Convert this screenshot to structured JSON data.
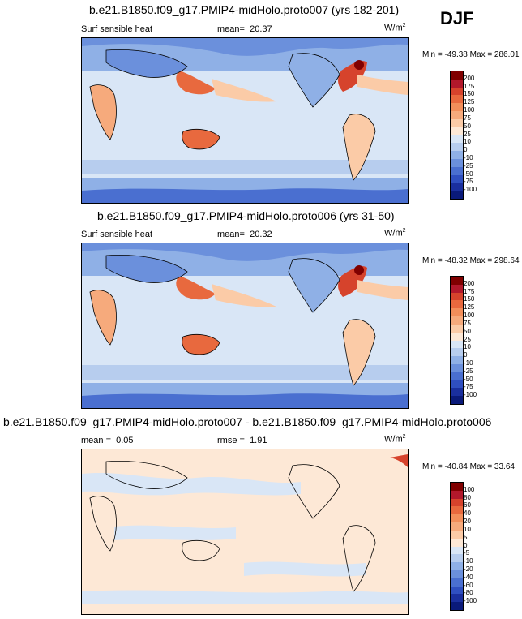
{
  "season": "DJF",
  "colors": {
    "ocean_base": "#d9e6f6",
    "accent_red": "#b2182b",
    "accent_blue": "#2b3fa8"
  },
  "chart_data": [
    {
      "type": "heatmap",
      "title": "b.e21.B1850.f09_g17.PMIP4-midHolo.proto007 (yrs 182-201)",
      "variable": "Surf sensible heat",
      "mean_label": "mean=",
      "mean": "20.37",
      "units": "W/m",
      "units_sup": "2",
      "min_max": "Min = -49.38 Max = 286.01",
      "colorbar_levels": [
        "200",
        "175",
        "150",
        "125",
        "100",
        "75",
        "50",
        "25",
        "10",
        "0",
        "-10",
        "-25",
        "-50",
        "-75",
        "-100"
      ],
      "colorbar_colors": [
        "#800000",
        "#b2182b",
        "#d6432c",
        "#e8693e",
        "#f28e5a",
        "#f6aa7c",
        "#fbcba7",
        "#fde8d6",
        "#d9e6f6",
        "#b7cdee",
        "#8fb0e6",
        "#6b90dc",
        "#4a6fd0",
        "#2f4fc0",
        "#1a2f9e",
        "#0a1a7a"
      ]
    },
    {
      "type": "heatmap",
      "title": "b.e21.B1850.f09_g17.PMIP4-midHolo.proto006 (yrs 31-50)",
      "variable": "Surf sensible heat",
      "mean_label": "mean=",
      "mean": "20.32",
      "units": "W/m",
      "units_sup": "2",
      "min_max": "Min = -48.32 Max = 298.64",
      "colorbar_levels": [
        "200",
        "175",
        "150",
        "125",
        "100",
        "75",
        "50",
        "25",
        "10",
        "0",
        "-10",
        "-25",
        "-50",
        "-75",
        "-100"
      ],
      "colorbar_colors": [
        "#800000",
        "#b2182b",
        "#d6432c",
        "#e8693e",
        "#f28e5a",
        "#f6aa7c",
        "#fbcba7",
        "#fde8d6",
        "#d9e6f6",
        "#b7cdee",
        "#8fb0e6",
        "#6b90dc",
        "#4a6fd0",
        "#2f4fc0",
        "#1a2f9e",
        "#0a1a7a"
      ]
    },
    {
      "type": "heatmap",
      "title": "b.e21.B1850.f09_g17.PMIP4-midHolo.proto007 - b.e21.B1850.f09_g17.PMIP4-midHolo.proto006",
      "mean_label": "mean =",
      "mean": "0.05",
      "rmse_label": "rmse =",
      "rmse": "1.91",
      "units": "W/m",
      "units_sup": "2",
      "min_max": "Min = -40.84 Max = 33.64",
      "colorbar_levels": [
        "100",
        "80",
        "60",
        "40",
        "20",
        "10",
        "5",
        "0",
        "-5",
        "-10",
        "-20",
        "-40",
        "-60",
        "-80",
        "-100"
      ],
      "colorbar_colors": [
        "#800000",
        "#b2182b",
        "#d6432c",
        "#e8693e",
        "#f28e5a",
        "#f6aa7c",
        "#fbcba7",
        "#fde8d6",
        "#d9e6f6",
        "#b7cdee",
        "#8fb0e6",
        "#6b90dc",
        "#4a6fd0",
        "#2f4fc0",
        "#1a2f9e",
        "#0a1a7a"
      ]
    }
  ]
}
